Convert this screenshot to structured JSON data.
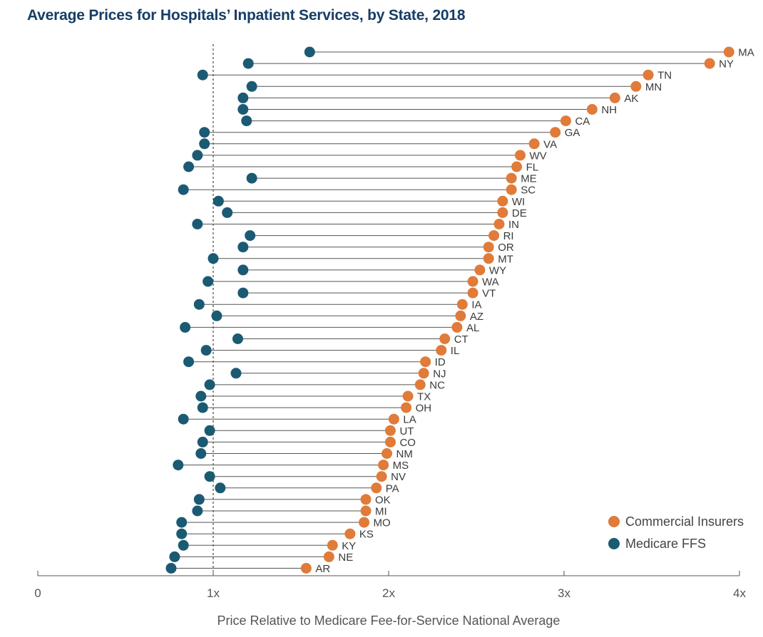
{
  "chart_data": {
    "type": "dumbbell",
    "title": "Average Prices for Hospitals’ Inpatient Services, by State, 2018",
    "xlabel": "Price Relative to Medicare Fee-for-Service National Average",
    "xlim": [
      0,
      4
    ],
    "reference_line": 1,
    "x_ticks": [
      {
        "value": 0,
        "label": "0"
      },
      {
        "value": 1,
        "label": "1x"
      },
      {
        "value": 2,
        "label": "2x"
      },
      {
        "value": 3,
        "label": "3x"
      },
      {
        "value": 4,
        "label": "4x"
      }
    ],
    "series": [
      {
        "name": "Commercial Insurers",
        "color": "#e07b39"
      },
      {
        "name": "Medicare FFS",
        "color": "#1b5a73"
      }
    ],
    "legend_position": "bottom-right",
    "states": [
      {
        "state": "MA",
        "commercial": 3.94,
        "medicare": 1.55
      },
      {
        "state": "NY",
        "commercial": 3.83,
        "medicare": 1.2
      },
      {
        "state": "TN",
        "commercial": 3.48,
        "medicare": 0.94
      },
      {
        "state": "MN",
        "commercial": 3.41,
        "medicare": 1.22
      },
      {
        "state": "AK",
        "commercial": 3.29,
        "medicare": 1.17
      },
      {
        "state": "NH",
        "commercial": 3.16,
        "medicare": 1.17
      },
      {
        "state": "CA",
        "commercial": 3.01,
        "medicare": 1.19
      },
      {
        "state": "GA",
        "commercial": 2.95,
        "medicare": 0.95
      },
      {
        "state": "VA",
        "commercial": 2.83,
        "medicare": 0.95
      },
      {
        "state": "WV",
        "commercial": 2.75,
        "medicare": 0.91
      },
      {
        "state": "FL",
        "commercial": 2.73,
        "medicare": 0.86
      },
      {
        "state": "ME",
        "commercial": 2.7,
        "medicare": 1.22
      },
      {
        "state": "SC",
        "commercial": 2.7,
        "medicare": 0.83
      },
      {
        "state": "WI",
        "commercial": 2.65,
        "medicare": 1.03
      },
      {
        "state": "DE",
        "commercial": 2.65,
        "medicare": 1.08
      },
      {
        "state": "IN",
        "commercial": 2.63,
        "medicare": 0.91
      },
      {
        "state": "RI",
        "commercial": 2.6,
        "medicare": 1.21
      },
      {
        "state": "OR",
        "commercial": 2.57,
        "medicare": 1.17
      },
      {
        "state": "MT",
        "commercial": 2.57,
        "medicare": 1.0
      },
      {
        "state": "WY",
        "commercial": 2.52,
        "medicare": 1.17
      },
      {
        "state": "WA",
        "commercial": 2.48,
        "medicare": 0.97
      },
      {
        "state": "VT",
        "commercial": 2.48,
        "medicare": 1.17
      },
      {
        "state": "IA",
        "commercial": 2.42,
        "medicare": 0.92
      },
      {
        "state": "AZ",
        "commercial": 2.41,
        "medicare": 1.02
      },
      {
        "state": "AL",
        "commercial": 2.39,
        "medicare": 0.84
      },
      {
        "state": "CT",
        "commercial": 2.32,
        "medicare": 1.14
      },
      {
        "state": "IL",
        "commercial": 2.3,
        "medicare": 0.96
      },
      {
        "state": "ID",
        "commercial": 2.21,
        "medicare": 0.86
      },
      {
        "state": "NJ",
        "commercial": 2.2,
        "medicare": 1.13
      },
      {
        "state": "NC",
        "commercial": 2.18,
        "medicare": 0.98
      },
      {
        "state": "TX",
        "commercial": 2.11,
        "medicare": 0.93
      },
      {
        "state": "OH",
        "commercial": 2.1,
        "medicare": 0.94
      },
      {
        "state": "LA",
        "commercial": 2.03,
        "medicare": 0.83
      },
      {
        "state": "UT",
        "commercial": 2.01,
        "medicare": 0.98
      },
      {
        "state": "CO",
        "commercial": 2.01,
        "medicare": 0.94
      },
      {
        "state": "NM",
        "commercial": 1.99,
        "medicare": 0.93
      },
      {
        "state": "MS",
        "commercial": 1.97,
        "medicare": 0.8
      },
      {
        "state": "NV",
        "commercial": 1.96,
        "medicare": 0.98
      },
      {
        "state": "PA",
        "commercial": 1.93,
        "medicare": 1.04
      },
      {
        "state": "OK",
        "commercial": 1.87,
        "medicare": 0.92
      },
      {
        "state": "MI",
        "commercial": 1.87,
        "medicare": 0.91
      },
      {
        "state": "MO",
        "commercial": 1.86,
        "medicare": 0.82
      },
      {
        "state": "KS",
        "commercial": 1.78,
        "medicare": 0.82
      },
      {
        "state": "KY",
        "commercial": 1.68,
        "medicare": 0.83
      },
      {
        "state": "NE",
        "commercial": 1.66,
        "medicare": 0.78
      },
      {
        "state": "AR",
        "commercial": 1.53,
        "medicare": 0.76
      }
    ]
  }
}
